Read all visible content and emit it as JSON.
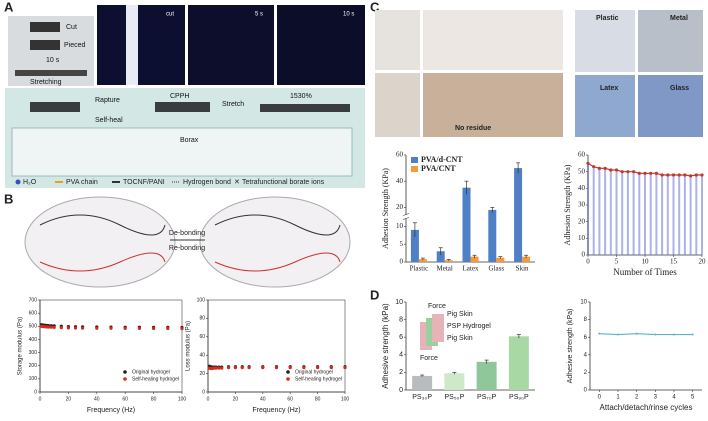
{
  "panels": [
    "A",
    "B",
    "C",
    "D"
  ],
  "panel_a": {
    "photo_labels": [
      "Cut",
      "Pieced",
      "10 s",
      "Stretching"
    ],
    "time_labels": [
      "cut",
      "5 s",
      "10 s"
    ],
    "diagram": {
      "left": "Rapture",
      "left_sub": "Self-heal",
      "center": "CPPH",
      "right": "Stretch",
      "right_value": "1530%",
      "inset": "Borax"
    },
    "legend": [
      "H₂O",
      "PVA chain",
      "TOCNF/PANI",
      "Hydrogen bond",
      "Tetrafunctional borate ions"
    ]
  },
  "panel_b": {
    "top": "De-bonding",
    "bottom": "Re-bonding"
  },
  "panel_c": {
    "photo_labels": [
      "No residue",
      "Plastic",
      "Metal",
      "Latex",
      "Glass"
    ]
  },
  "panel_d": {
    "inset": [
      "Force",
      "Pig Skin",
      "PSP Hydrogel",
      "Pig Skin",
      "Force"
    ]
  },
  "chart_data": [
    {
      "type": "scatter",
      "xlabel": "Frequency (Hz)",
      "ylabel": "Storage modulus (Pa)",
      "x": [
        1,
        2,
        3,
        4,
        5,
        6,
        8,
        10,
        15,
        20,
        25,
        30,
        40,
        50,
        60,
        70,
        80,
        90,
        100
      ],
      "series": [
        {
          "name": "Original hydrogel",
          "color": "#222222",
          "values": [
            512,
            510,
            508,
            507,
            506,
            505,
            504,
            503,
            500,
            498,
            497,
            496,
            495,
            494,
            493,
            493,
            492,
            492,
            491
          ]
        },
        {
          "name": "Self-healing hydrogel",
          "color": "#d62a1e",
          "values": [
            500,
            498,
            497,
            496,
            495,
            494,
            493,
            492,
            490,
            488,
            487,
            486,
            485,
            485,
            484,
            484,
            483,
            483,
            482
          ]
        }
      ],
      "xlim": [
        0,
        100
      ],
      "xticks": [
        0,
        20,
        40,
        60,
        80,
        100
      ],
      "ylim": [
        0,
        700
      ],
      "yticks": [
        0,
        100,
        200,
        300,
        400,
        500,
        600,
        700
      ],
      "legend": "lower right"
    },
    {
      "type": "scatter",
      "xlabel": "Frequency (Hz)",
      "ylabel": "Loss modulus (Pa)",
      "x": [
        1,
        2,
        3,
        4,
        5,
        6,
        8,
        10,
        15,
        20,
        25,
        30,
        40,
        50,
        60,
        70,
        80,
        90,
        100
      ],
      "series": [
        {
          "name": "Original hydrogel",
          "color": "#222222",
          "values": [
            28,
            27.5,
            27,
            27,
            27,
            27,
            27,
            27,
            27.5,
            27.5,
            27.5,
            27.5,
            27.5,
            27.5,
            27.5,
            27.5,
            27.5,
            27.5,
            27.5
          ]
        },
        {
          "name": "Self-healing hydrogel",
          "color": "#d62a1e",
          "values": [
            26,
            25.5,
            25.5,
            26,
            26,
            26,
            26,
            26,
            26.5,
            26.5,
            26.5,
            26.5,
            26.5,
            26.5,
            26.5,
            26.5,
            26.5,
            26.5,
            26.5
          ]
        }
      ],
      "xlim": [
        0,
        100
      ],
      "xticks": [
        0,
        20,
        40,
        60,
        80,
        100
      ],
      "ylim": [
        0,
        100
      ],
      "yticks": [
        0,
        20,
        40,
        60,
        80,
        100
      ],
      "legend": "lower right"
    },
    {
      "type": "bar",
      "ylabel": "Adhesion Strength (KPa)",
      "categories": [
        "Plastic",
        "Metal",
        "Latex",
        "Glass",
        "Skin"
      ],
      "series": [
        {
          "name": "PVA/d-CNT",
          "color": "#4f7fc4",
          "values": [
            9,
            3,
            35,
            18,
            50
          ],
          "errors": [
            2,
            1,
            5,
            2,
            4
          ]
        },
        {
          "name": "PVA/CNT",
          "color": "#f39a3c",
          "values": [
            0.8,
            0.5,
            1.5,
            1.2,
            1.5
          ],
          "errors": [
            0.3,
            0.2,
            0.4,
            0.3,
            0.4
          ]
        }
      ],
      "ylim": [
        0,
        60
      ],
      "yticks": [
        0,
        5,
        10,
        20,
        40,
        60
      ],
      "axis_break": [
        12,
        15
      ],
      "legend": "upper left"
    },
    {
      "type": "line",
      "xlabel": "Number of Times",
      "ylabel": "Adhesion Strength (KPa)",
      "x": [
        0,
        1,
        2,
        3,
        4,
        5,
        6,
        7,
        8,
        9,
        10,
        11,
        12,
        13,
        14,
        15,
        16,
        17,
        18,
        19,
        20
      ],
      "values": [
        55,
        53,
        52,
        52,
        51,
        51,
        50,
        50,
        50,
        49,
        49,
        49,
        49,
        48,
        48,
        48,
        48,
        48,
        47.5,
        48,
        48
      ],
      "color": "#c0392b",
      "stem_color": "#6a73d9",
      "stems": true,
      "xlim": [
        0,
        20
      ],
      "xticks": [
        0,
        5,
        10,
        15,
        20
      ],
      "ylim": [
        0,
        60
      ],
      "yticks": [
        0,
        10,
        20,
        30,
        40,
        50,
        60
      ]
    },
    {
      "type": "bar",
      "ylabel": "Adhesive strength (kPa)",
      "categories": [
        "PS₃₀P",
        "PS₅₀P",
        "PS₇₀P",
        "PS₉₀P"
      ],
      "values": [
        1.6,
        1.9,
        3.2,
        6.1
      ],
      "errors": [
        0.1,
        0.1,
        0.2,
        0.2
      ],
      "colors": [
        "#b9bcbf",
        "#cfe8c8",
        "#8fc79a",
        "#a8d8a4"
      ],
      "ylim": [
        0,
        10
      ],
      "yticks": [
        0,
        2,
        4,
        6,
        8,
        10
      ]
    },
    {
      "type": "line",
      "xlabel": "Attach/detach/rinse cycles",
      "ylabel": "Adhesive strength (kPa)",
      "x": [
        0,
        1,
        2,
        3,
        4,
        5
      ],
      "values": [
        6.4,
        6.3,
        6.4,
        6.3,
        6.3,
        6.3
      ],
      "color": "#5ab4c4",
      "xlim": [
        -0.5,
        5.5
      ],
      "xticks": [
        0,
        1,
        2,
        3,
        4,
        5
      ],
      "ylim": [
        0,
        10
      ],
      "yticks": [
        0,
        2,
        4,
        6,
        8,
        10
      ]
    }
  ]
}
